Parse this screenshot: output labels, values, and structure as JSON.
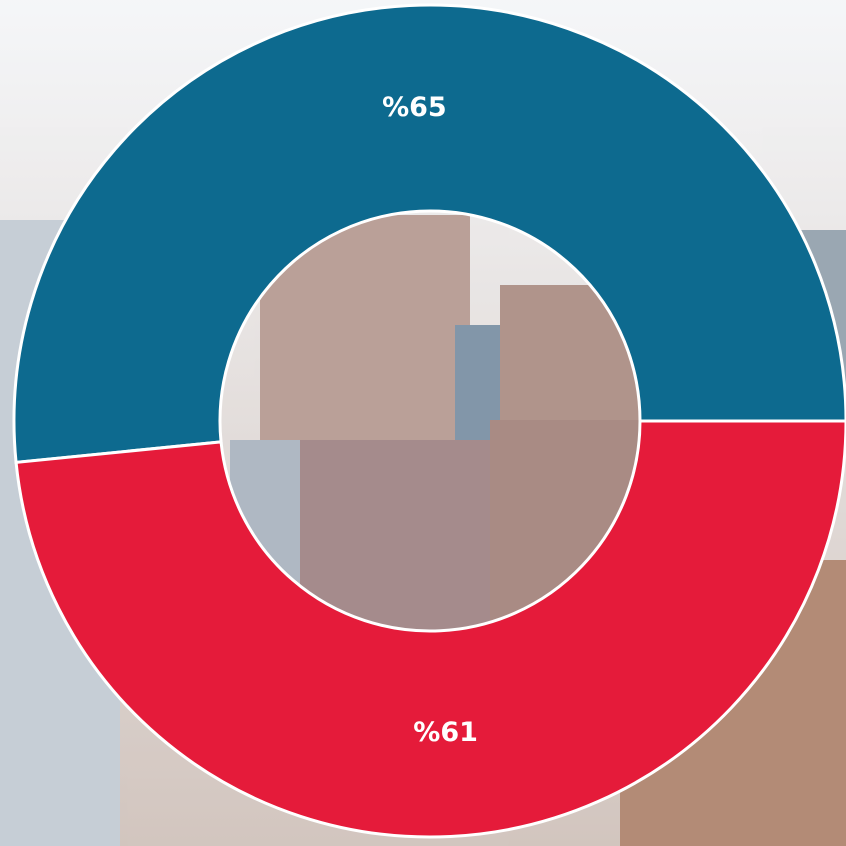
{
  "chart_data": {
    "type": "donut",
    "series": [
      {
        "values": [
          65,
          61
        ],
        "value_labels": [
          "%65",
          "%61"
        ],
        "colors": [
          "#0d6a8f",
          "#e51b3a"
        ]
      }
    ]
  }
}
